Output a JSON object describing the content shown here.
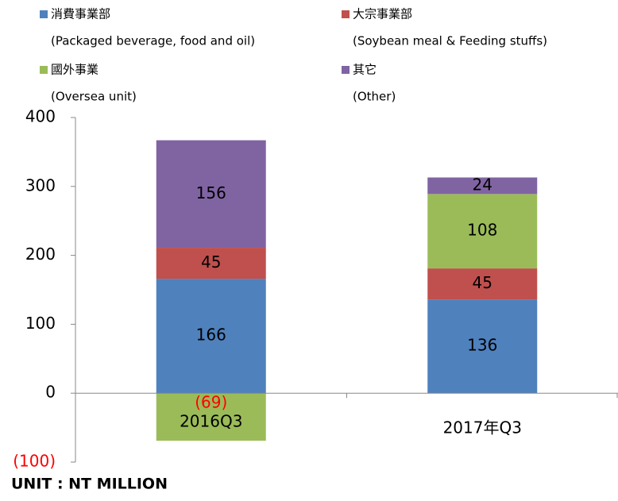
{
  "chart_data": {
    "type": "stacked_bar",
    "categories": [
      "2016Q3",
      "2017年Q3"
    ],
    "series": [
      {
        "name": "消費事業部",
        "name_en": "(Packaged beverage, food and oil)",
        "color": "#4f81bd",
        "values": [
          166,
          136
        ]
      },
      {
        "name": "大宗事業部",
        "name_en": "(Soybean meal & Feeding stuffs)",
        "color": "#c0504d",
        "values": [
          45,
          45
        ]
      },
      {
        "name": "國外事業",
        "name_en": "(Oversea unit)",
        "color": "#9bbb59",
        "values": [
          -69,
          108
        ],
        "value_labels": [
          "(69)",
          "108"
        ]
      },
      {
        "name": "其它",
        "name_en": "(Other)",
        "color": "#8064a2",
        "values": [
          156,
          24
        ]
      }
    ],
    "ylim": [
      -100,
      400
    ],
    "yticks": [
      {
        "value": -100,
        "label": "(100)"
      },
      0,
      100,
      200,
      300,
      400
    ],
    "negative_color": "#ff0000",
    "note": "UNIT : NT MILLION"
  }
}
